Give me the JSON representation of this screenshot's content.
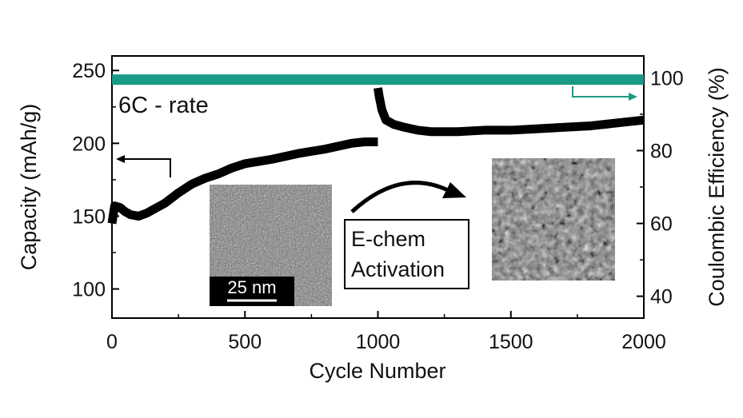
{
  "chart_data": {
    "type": "scatter",
    "xlabel": "Cycle Number",
    "ylabel_left": "Capacity (mAh/g)",
    "ylabel_right": "Coulombic Efficiency (%)",
    "xlim": [
      0,
      2000
    ],
    "ylim_left": [
      80,
      260
    ],
    "ylim_right": [
      34,
      106
    ],
    "xticks": [
      0,
      500,
      1000,
      1500,
      2000
    ],
    "yticks_left": [
      100,
      150,
      200,
      250
    ],
    "yticks_right": [
      40,
      60,
      80,
      100
    ],
    "grid": false,
    "colors": {
      "capacity": "#000000",
      "efficiency": "#1a9a86",
      "arrow_right": "#1a9a86",
      "arrow_left": "#000000"
    },
    "series": [
      {
        "axis": "left",
        "x": [
          0,
          10,
          30,
          50,
          70,
          100,
          130,
          160,
          200,
          250,
          300,
          350,
          400,
          450,
          500,
          600,
          700,
          800,
          900,
          950,
          1000
        ],
        "y": [
          145,
          157,
          156,
          153,
          151,
          150,
          152,
          155,
          159,
          166,
          172,
          176,
          179,
          183,
          186,
          189,
          193,
          196,
          200,
          201,
          201
        ]
      },
      {
        "axis": "left",
        "x": [
          1000,
          1005,
          1015,
          1030,
          1060,
          1100,
          1150,
          1200,
          1300,
          1400,
          1500,
          1600,
          1700,
          1800,
          1900,
          2000
        ],
        "y": [
          238,
          232,
          223,
          216,
          213,
          211,
          209,
          208,
          208,
          209,
          209,
          210,
          211,
          212,
          214,
          216
        ]
      },
      {
        "axis": "right",
        "x": [
          0,
          2000
        ],
        "y": [
          99.5,
          99.5
        ]
      }
    ],
    "annotations": {
      "rate_label": "6C - rate",
      "activation_line1": "E-chem",
      "activation_line2": "Activation",
      "scale_bar": "25 nm"
    }
  }
}
